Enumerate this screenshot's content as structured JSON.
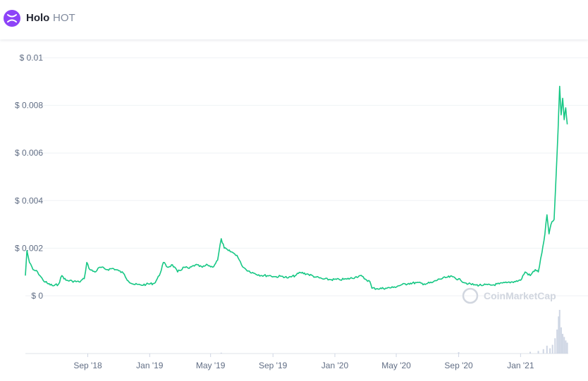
{
  "header": {
    "name": "Holo",
    "symbol": "HOT",
    "logo_color": "#8d43f8"
  },
  "watermark": "CoinMarketCap",
  "colors": {
    "line": "#16c784",
    "grid": "#eff2f5",
    "volume": "#cfd6e4"
  },
  "chart_data": {
    "type": "line",
    "title": "",
    "xlabel": "",
    "ylabel": "",
    "ylim": [
      0,
      0.01
    ],
    "y_ticks": [
      {
        "value": 0,
        "label": "$ 0"
      },
      {
        "value": 0.002,
        "label": "$ 0.002"
      },
      {
        "value": 0.004,
        "label": "$ 0.004"
      },
      {
        "value": 0.006,
        "label": "$ 0.006"
      },
      {
        "value": 0.008,
        "label": "$ 0.008"
      },
      {
        "value": 0.01,
        "label": "$ 0.01"
      }
    ],
    "x_ticks": [
      {
        "date": "2018-09-01",
        "label": "Sep '18"
      },
      {
        "date": "2019-01-01",
        "label": "Jan '19"
      },
      {
        "date": "2019-05-01",
        "label": "May '19"
      },
      {
        "date": "2019-09-01",
        "label": "Sep '19"
      },
      {
        "date": "2020-01-01",
        "label": "Jan '20"
      },
      {
        "date": "2020-05-01",
        "label": "May '20"
      },
      {
        "date": "2020-09-01",
        "label": "Sep '20"
      },
      {
        "date": "2021-01-01",
        "label": "Jan '21"
      }
    ],
    "xlim": [
      "2018-05-01",
      "2021-04-05"
    ],
    "series": [
      {
        "points": [
          [
            "2018-05-01",
            0.00085
          ],
          [
            "2018-05-04",
            0.0019
          ],
          [
            "2018-05-09",
            0.0014
          ],
          [
            "2018-05-16",
            0.0011
          ],
          [
            "2018-05-25",
            0.001
          ],
          [
            "2018-06-05",
            0.00065
          ],
          [
            "2018-06-15",
            0.0005
          ],
          [
            "2018-06-25",
            0.00042
          ],
          [
            "2018-07-05",
            0.00048
          ],
          [
            "2018-07-12",
            0.00085
          ],
          [
            "2018-07-20",
            0.00065
          ],
          [
            "2018-08-01",
            0.00062
          ],
          [
            "2018-08-15",
            0.00058
          ],
          [
            "2018-08-25",
            0.00072
          ],
          [
            "2018-08-30",
            0.0014
          ],
          [
            "2018-09-05",
            0.0011
          ],
          [
            "2018-09-15",
            0.001
          ],
          [
            "2018-09-25",
            0.0012
          ],
          [
            "2018-10-10",
            0.0011
          ],
          [
            "2018-10-20",
            0.00115
          ],
          [
            "2018-11-01",
            0.00105
          ],
          [
            "2018-11-10",
            0.00095
          ],
          [
            "2018-11-20",
            0.00062
          ],
          [
            "2018-12-01",
            0.00048
          ],
          [
            "2018-12-15",
            0.00045
          ],
          [
            "2018-12-25",
            0.00048
          ],
          [
            "2019-01-10",
            0.00052
          ],
          [
            "2019-01-20",
            0.00085
          ],
          [
            "2019-01-28",
            0.0014
          ],
          [
            "2019-02-05",
            0.0012
          ],
          [
            "2019-02-15",
            0.0013
          ],
          [
            "2019-02-25",
            0.001
          ],
          [
            "2019-03-10",
            0.0012
          ],
          [
            "2019-03-20",
            0.00115
          ],
          [
            "2019-04-01",
            0.0013
          ],
          [
            "2019-04-15",
            0.0012
          ],
          [
            "2019-04-25",
            0.0013
          ],
          [
            "2019-05-05",
            0.0012
          ],
          [
            "2019-05-15",
            0.0015
          ],
          [
            "2019-05-22",
            0.0024
          ],
          [
            "2019-05-28",
            0.002
          ],
          [
            "2019-06-05",
            0.0019
          ],
          [
            "2019-06-15",
            0.0018
          ],
          [
            "2019-06-22",
            0.0017
          ],
          [
            "2019-07-01",
            0.0013
          ],
          [
            "2019-07-10",
            0.0011
          ],
          [
            "2019-07-25",
            0.00095
          ],
          [
            "2019-08-10",
            0.00085
          ],
          [
            "2019-08-25",
            0.00085
          ],
          [
            "2019-09-05",
            0.0008
          ],
          [
            "2019-09-20",
            0.00082
          ],
          [
            "2019-10-01",
            0.00075
          ],
          [
            "2019-10-15",
            0.00085
          ],
          [
            "2019-10-25",
            0.00098
          ],
          [
            "2019-11-10",
            0.0009
          ],
          [
            "2019-11-25",
            0.00078
          ],
          [
            "2019-12-10",
            0.0007
          ],
          [
            "2019-12-25",
            0.00068
          ],
          [
            "2020-01-10",
            0.00068
          ],
          [
            "2020-01-25",
            0.0007
          ],
          [
            "2020-02-10",
            0.00078
          ],
          [
            "2020-02-20",
            0.00085
          ],
          [
            "2020-03-01",
            0.0007
          ],
          [
            "2020-03-10",
            0.0006
          ],
          [
            "2020-03-14",
            0.00032
          ],
          [
            "2020-03-25",
            0.0003
          ],
          [
            "2020-04-10",
            0.00032
          ],
          [
            "2020-04-25",
            0.00035
          ],
          [
            "2020-05-10",
            0.00045
          ],
          [
            "2020-05-25",
            0.00052
          ],
          [
            "2020-06-10",
            0.00055
          ],
          [
            "2020-06-25",
            0.0005
          ],
          [
            "2020-07-10",
            0.00055
          ],
          [
            "2020-07-25",
            0.0007
          ],
          [
            "2020-08-10",
            0.00078
          ],
          [
            "2020-08-20",
            0.0008
          ],
          [
            "2020-09-05",
            0.00065
          ],
          [
            "2020-09-20",
            0.0005
          ],
          [
            "2020-10-05",
            0.00045
          ],
          [
            "2020-10-20",
            0.00045
          ],
          [
            "2020-11-05",
            0.00045
          ],
          [
            "2020-11-20",
            0.0005
          ],
          [
            "2020-12-05",
            0.00055
          ],
          [
            "2020-12-20",
            0.0006
          ],
          [
            "2021-01-01",
            0.00065
          ],
          [
            "2021-01-10",
            0.001
          ],
          [
            "2021-01-20",
            0.00085
          ],
          [
            "2021-01-30",
            0.0011
          ],
          [
            "2021-02-05",
            0.001
          ],
          [
            "2021-02-12",
            0.0018
          ],
          [
            "2021-02-18",
            0.0026
          ],
          [
            "2021-02-22",
            0.0034
          ],
          [
            "2021-02-26",
            0.0026
          ],
          [
            "2021-03-02",
            0.003
          ],
          [
            "2021-03-08",
            0.0032
          ],
          [
            "2021-03-12",
            0.005
          ],
          [
            "2021-03-16",
            0.007
          ],
          [
            "2021-03-19",
            0.0088
          ],
          [
            "2021-03-22",
            0.0076
          ],
          [
            "2021-03-25",
            0.0083
          ],
          [
            "2021-03-28",
            0.0074
          ],
          [
            "2021-03-31",
            0.0079
          ],
          [
            "2021-04-03",
            0.0072
          ]
        ]
      }
    ],
    "volume": [
      [
        "2019-05-22",
        0.02
      ],
      [
        "2020-09-01",
        0.03
      ],
      [
        "2021-01-20",
        0.04
      ],
      [
        "2021-02-05",
        0.06
      ],
      [
        "2021-02-15",
        0.1
      ],
      [
        "2021-02-22",
        0.18
      ],
      [
        "2021-02-28",
        0.12
      ],
      [
        "2021-03-05",
        0.2
      ],
      [
        "2021-03-10",
        0.35
      ],
      [
        "2021-03-14",
        0.55
      ],
      [
        "2021-03-17",
        0.85
      ],
      [
        "2021-03-19",
        1.0
      ],
      [
        "2021-03-22",
        0.6
      ],
      [
        "2021-03-25",
        0.45
      ],
      [
        "2021-03-28",
        0.38
      ],
      [
        "2021-03-31",
        0.3
      ],
      [
        "2021-04-03",
        0.25
      ]
    ]
  }
}
